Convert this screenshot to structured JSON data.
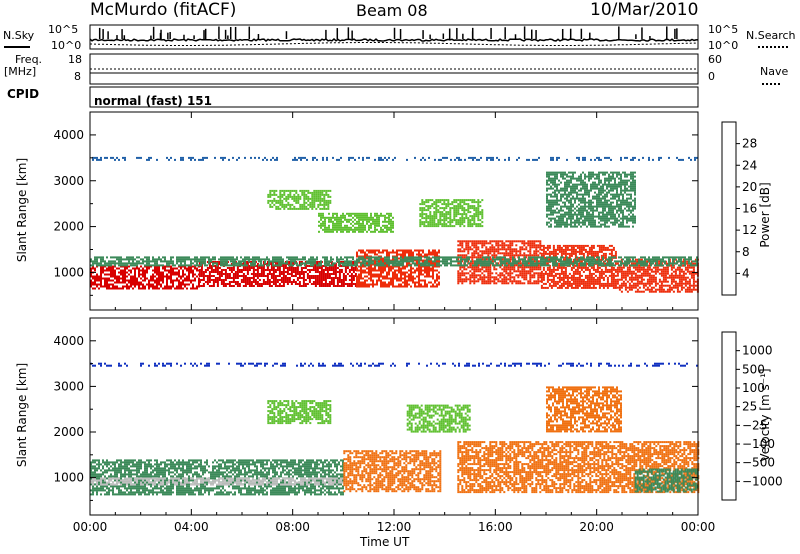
{
  "header": {
    "station": "McMurdo (fitACF)",
    "beam": "Beam 08",
    "date": "10/Mar/2010"
  },
  "top_panels": {
    "nsky_label": "N.Sky",
    "nsky_ticks": [
      "10^5",
      "10^0"
    ],
    "nsearch_label": "N.Search",
    "nsearch_ticks": [
      "10^5",
      "10^0"
    ],
    "freq_label": "Freq.",
    "freq_unit": "[MHz]",
    "freq_ticks": [
      "18",
      "8"
    ],
    "nave_label": "Nave",
    "nave_ticks": [
      "60",
      "0"
    ],
    "cpid_label": "CPID",
    "cpid_value": "normal (fast) 151"
  },
  "chart_data": [
    {
      "type": "heatmap",
      "ylabel": "Slant Range [km]",
      "y_ticks": [
        "1000",
        "2000",
        "3000",
        "4000"
      ],
      "ylim": [
        180,
        4500
      ],
      "xlim": [
        0,
        24
      ],
      "colorbar_label": "Power [dB]",
      "colorbar_ticks": [
        "4",
        "8",
        "12",
        "16",
        "20",
        "24",
        "28"
      ],
      "colorbar_colors": [
        "#1030e0",
        "#2060a8",
        "#3c8a5a",
        "#5fc030",
        "#f0d020",
        "#f08010",
        "#ee2c0a",
        "#d80000"
      ],
      "bands": [
        {
          "x": [
            0.0,
            24.0
          ],
          "y": [
            3440,
            3520
          ],
          "level": 1
        },
        {
          "x": [
            0.0,
            4.3
          ],
          "y": [
            650,
            1150
          ],
          "level": 7
        },
        {
          "x": [
            4.3,
            10.5
          ],
          "y": [
            700,
            1250
          ],
          "level": 7
        },
        {
          "x": [
            10.5,
            13.8
          ],
          "y": [
            700,
            1500
          ],
          "level": 6
        },
        {
          "x": [
            14.5,
            17.8
          ],
          "y": [
            750,
            1700
          ],
          "level": 6
        },
        {
          "x": [
            17.8,
            20.8
          ],
          "y": [
            650,
            1600
          ],
          "level": 6
        },
        {
          "x": [
            20.8,
            24.0
          ],
          "y": [
            600,
            1300
          ],
          "level": 6
        },
        {
          "x": [
            0.0,
            24.0
          ],
          "y": [
            1150,
            1350
          ],
          "level": 2
        },
        {
          "x": [
            7.0,
            9.5
          ],
          "y": [
            2400,
            2800
          ],
          "level": 3
        },
        {
          "x": [
            9.0,
            12.0
          ],
          "y": [
            1900,
            2300
          ],
          "level": 3
        },
        {
          "x": [
            13.0,
            15.5
          ],
          "y": [
            2000,
            2600
          ],
          "level": 3
        },
        {
          "x": [
            18.0,
            21.5
          ],
          "y": [
            2000,
            3200
          ],
          "level": 2
        }
      ]
    },
    {
      "type": "heatmap",
      "ylabel": "Slant Range [km]",
      "xlabel": "Time UT",
      "x_ticks": [
        "00:00",
        "04:00",
        "08:00",
        "12:00",
        "16:00",
        "20:00",
        "00:00"
      ],
      "y_ticks": [
        "1000",
        "2000",
        "3000",
        "4000"
      ],
      "ylim": [
        180,
        4500
      ],
      "xlim": [
        0,
        24
      ],
      "colorbar_label": "Velocity [m s⁻¹]",
      "colorbar_ticks": [
        "1000",
        "500",
        "100",
        "25",
        "−25",
        "−100",
        "−500",
        "−1000"
      ],
      "colorbar_colors": [
        "#1030c0",
        "#2c4f9c",
        "#3c8a5a",
        "#5fc030",
        "#c0c0c0",
        "#f0a020",
        "#f07010",
        "#ee3010",
        "#e00000"
      ],
      "bands": [
        {
          "x": [
            0.0,
            24.0
          ],
          "y": [
            3440,
            3520
          ],
          "level": 0
        },
        {
          "x": [
            0.0,
            10.0
          ],
          "y": [
            650,
            1400
          ],
          "level": 2
        },
        {
          "x": [
            0.0,
            10.0
          ],
          "y": [
            850,
            1000
          ],
          "level": 4
        },
        {
          "x": [
            10.0,
            13.8
          ],
          "y": [
            700,
            1600
          ],
          "level": 6
        },
        {
          "x": [
            14.5,
            24.0
          ],
          "y": [
            700,
            1800
          ],
          "level": 6
        },
        {
          "x": [
            21.5,
            24.0
          ],
          "y": [
            700,
            1200
          ],
          "level": 2
        },
        {
          "x": [
            7.0,
            9.5
          ],
          "y": [
            2200,
            2700
          ],
          "level": 3
        },
        {
          "x": [
            12.5,
            15.0
          ],
          "y": [
            2000,
            2600
          ],
          "level": 3
        },
        {
          "x": [
            18.0,
            21.0
          ],
          "y": [
            2000,
            3000
          ],
          "level": 6
        }
      ]
    }
  ]
}
